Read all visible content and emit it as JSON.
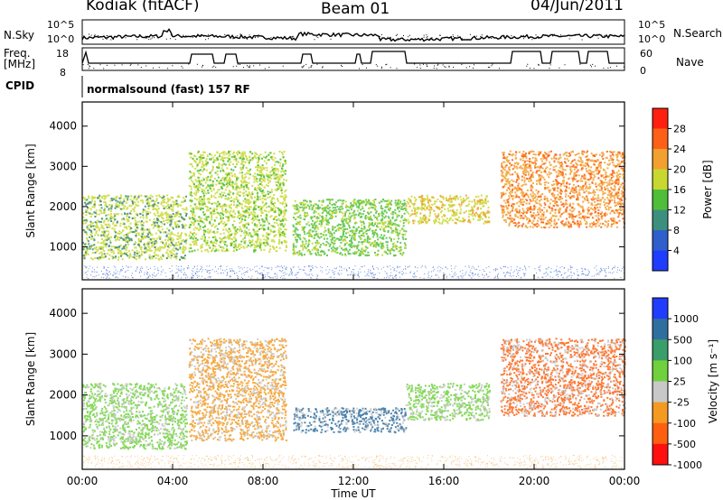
{
  "header": {
    "station": "Kodiak (fitACF)",
    "beam": "Beam 01",
    "date": "04/Jun/2011"
  },
  "left_labels": {
    "nsky_top": "N.Sky",
    "freq_top": "Freq.",
    "freq_unit": "[MHz]",
    "cpid": "CPID"
  },
  "right_labels": {
    "nsearch": "N.Search",
    "nave": "Nave"
  },
  "cpid_text": "normalsound (fast) 157 RF",
  "noise_panel": {
    "left_ticks": [
      "10^5",
      "10^0"
    ],
    "right_ticks": [
      "10^5",
      "10^0"
    ]
  },
  "freq_panel": {
    "left_ticks": [
      "18",
      "8"
    ],
    "right_ticks": [
      "60",
      "0"
    ]
  },
  "chart_data": [
    {
      "type": "heatmap",
      "title": "Power",
      "ylabel": "Slant Range [km]",
      "xlabel": "Time UT",
      "x_ticks": [
        "00:00",
        "04:00",
        "08:00",
        "12:00",
        "16:00",
        "20:00",
        "00:00"
      ],
      "y_ticks": [
        1000,
        2000,
        3000,
        4000
      ],
      "ylim": [
        180,
        4600
      ],
      "colorbar": {
        "label": "Power [dB]",
        "ticks": [
          "4",
          "8",
          "12",
          "16",
          "20",
          "24",
          "28"
        ],
        "colors": [
          "#1f3cff",
          "#2f5fcc",
          "#3d8f7d",
          "#4fbf3a",
          "#c8d830",
          "#f2a030",
          "#ff6018",
          "#ff2010"
        ]
      },
      "regions": [
        {
          "t0": 0.0,
          "t1": 4.6,
          "r0": 700,
          "r1": 2300,
          "level": 18
        },
        {
          "t0": 4.7,
          "t1": 9.0,
          "r0": 900,
          "r1": 3400,
          "level": 20
        },
        {
          "t0": 9.3,
          "t1": 14.3,
          "r0": 800,
          "r1": 2200,
          "level": 14
        },
        {
          "t0": 14.3,
          "t1": 18.0,
          "r0": 1600,
          "r1": 2300,
          "level": 20
        },
        {
          "t0": 18.5,
          "t1": 24.0,
          "r0": 1500,
          "r1": 3400,
          "level": 22
        }
      ]
    },
    {
      "type": "heatmap",
      "title": "Velocity",
      "ylabel": "Slant Range [km]",
      "xlabel": "Time UT",
      "x_ticks": [
        "00:00",
        "04:00",
        "08:00",
        "12:00",
        "16:00",
        "20:00",
        "00:00"
      ],
      "y_ticks": [
        1000,
        2000,
        3000,
        4000
      ],
      "ylim": [
        180,
        4600
      ],
      "colorbar": {
        "label": "Velocity [m s⁻¹]",
        "ticks": [
          "1000",
          "500",
          "100",
          "25",
          "-25",
          "-100",
          "-500",
          "-1000"
        ],
        "colors": [
          "#1f3cff",
          "#2f6fa0",
          "#3a9e6a",
          "#6fd23c",
          "#c8c8c8",
          "#f59a20",
          "#ff6010",
          "#ff1010"
        ]
      },
      "regions": [
        {
          "t0": 0.0,
          "t1": 4.6,
          "r0": 700,
          "r1": 2300,
          "level": 0
        },
        {
          "t0": 4.7,
          "t1": 9.0,
          "r0": 900,
          "r1": 3400,
          "level": -300
        },
        {
          "t0": 9.3,
          "t1": 14.3,
          "r0": 1100,
          "r1": 1700,
          "level": 150
        },
        {
          "t0": 14.3,
          "t1": 18.0,
          "r0": 1400,
          "r1": 2300,
          "level": 0
        },
        {
          "t0": 18.5,
          "t1": 24.0,
          "r0": 1500,
          "r1": 3400,
          "level": -700
        }
      ]
    }
  ],
  "colors": {
    "axis": "#000000",
    "background": "#ffffff",
    "gray_scatter": "#c8c8c8"
  }
}
